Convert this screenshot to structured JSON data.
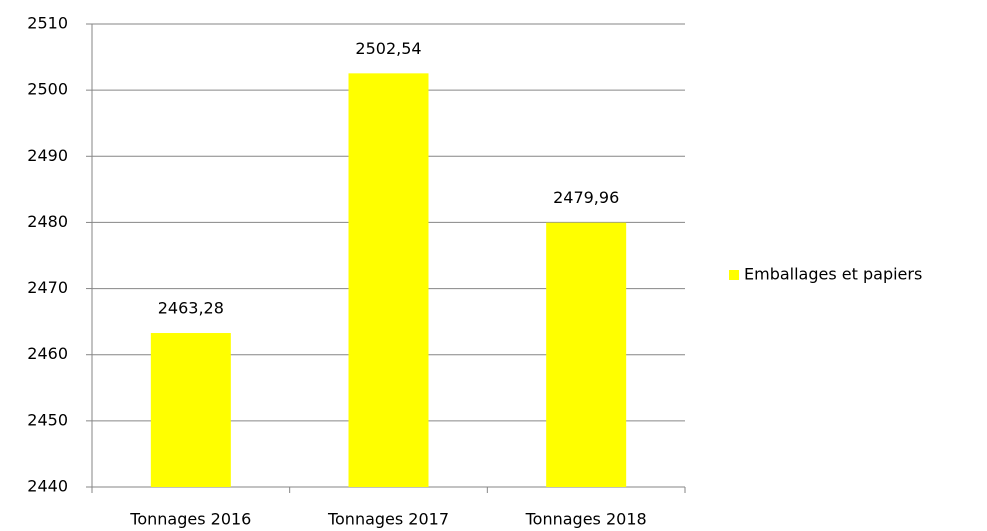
{
  "chart_data": {
    "type": "bar",
    "categories": [
      "Tonnages 2016",
      "Tonnages 2017",
      "Tonnages 2018"
    ],
    "series": [
      {
        "name": "Emballages et papiers",
        "color": "#ffff00",
        "values": [
          2463.28,
          2502.54,
          2479.96
        ],
        "value_labels": [
          "2463,28",
          "2502,54",
          "2479,96"
        ]
      }
    ],
    "ylim": [
      2440,
      2510
    ],
    "yticks": [
      2440,
      2450,
      2460,
      2470,
      2480,
      2490,
      2500,
      2510
    ],
    "grid": true,
    "legend": "right"
  }
}
